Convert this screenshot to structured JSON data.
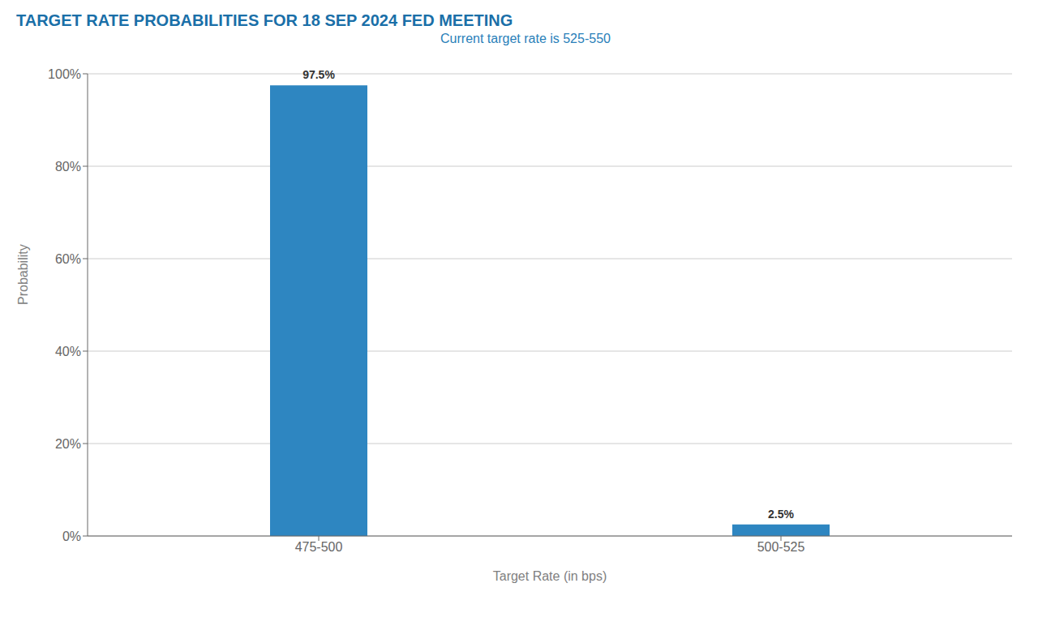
{
  "chart_data": {
    "type": "bar",
    "title": "TARGET RATE PROBABILITIES FOR 18 SEP 2024 FED MEETING",
    "subtitle": "Current target rate is 525-550",
    "categories": [
      "475-500",
      "500-525"
    ],
    "values": [
      97.5,
      2.5
    ],
    "value_labels": [
      "97.5%",
      "2.5%"
    ],
    "data_labels": true,
    "color": "#2e86c1",
    "xlabel": "Target Rate (in bps)",
    "ylabel": "Probability",
    "ylim": [
      0,
      100
    ],
    "yticks": [
      {
        "value": 0,
        "label": "0%"
      },
      {
        "value": 20,
        "label": "20%"
      },
      {
        "value": 40,
        "label": "40%"
      },
      {
        "value": 60,
        "label": "60%"
      },
      {
        "value": 80,
        "label": "80%"
      },
      {
        "value": 100,
        "label": "100%"
      }
    ],
    "grid": true
  }
}
